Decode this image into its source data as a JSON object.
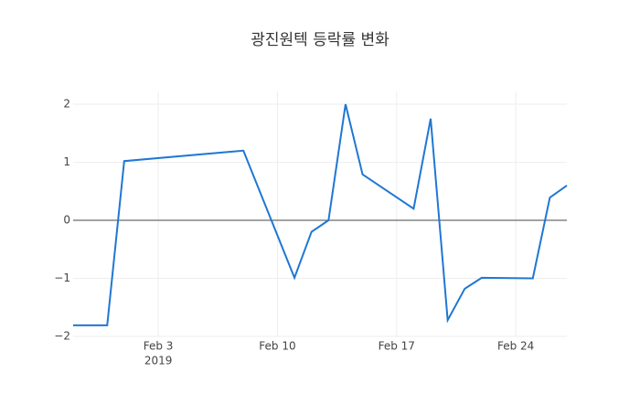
{
  "chart_data": {
    "type": "line",
    "title": "광진원텍 등락률 변화",
    "x": [
      "2019-01-29",
      "2019-01-31",
      "2019-02-01",
      "2019-02-08",
      "2019-02-11",
      "2019-02-12",
      "2019-02-13",
      "2019-02-14",
      "2019-02-15",
      "2019-02-18",
      "2019-02-19",
      "2019-02-20",
      "2019-02-21",
      "2019-02-22",
      "2019-02-25",
      "2019-02-26",
      "2019-02-27"
    ],
    "series": [
      {
        "color": "#1f77d4",
        "values": [
          -1.81,
          -1.81,
          1.02,
          1.2,
          -0.99,
          -0.2,
          0,
          2.0,
          0.79,
          0.2,
          1.75,
          -1.72,
          -1.18,
          -0.99,
          -1.0,
          0.39,
          0.6
        ]
      }
    ],
    "xlim": [
      "2019-01-29",
      "2019-02-27"
    ],
    "xticks": [
      {
        "value": "2019-02-03",
        "label": "Feb 3"
      },
      {
        "value": "2019-02-10",
        "label": "Feb 10"
      },
      {
        "value": "2019-02-17",
        "label": "Feb 17"
      },
      {
        "value": "2019-02-24",
        "label": "Feb 24"
      }
    ],
    "x_year_label": "2019",
    "ylim": [
      -2,
      2.22
    ],
    "yticks": [
      {
        "value": -2,
        "label": "−2"
      },
      {
        "value": -1,
        "label": "−1"
      },
      0,
      1,
      2
    ],
    "grid": true,
    "zeroline": true
  }
}
